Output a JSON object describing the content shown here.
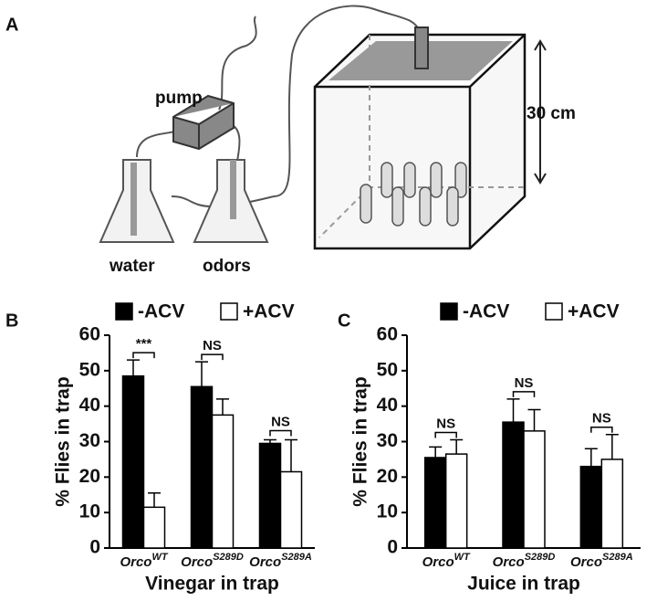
{
  "panel_a": {
    "label": "A",
    "pump": "pump",
    "water": "water",
    "odors": "odors",
    "height": "30 cm"
  },
  "chart_data": [
    {
      "type": "bar",
      "panel_label": "B",
      "y_label": "% Flies in trap",
      "x_label": "Vinegar in trap",
      "categories": [
        "OrcoWT",
        "OrcoS289D",
        "OrcoS289A"
      ],
      "series": [
        {
          "name": "-ACV",
          "color": "#000000",
          "values": [
            48.5,
            45.5,
            29.5
          ],
          "errors": [
            4.5,
            7,
            1
          ]
        },
        {
          "name": "+ACV",
          "color": "#ffffff",
          "values": [
            11.5,
            37.5,
            21.5
          ],
          "errors": [
            4,
            4.5,
            9
          ]
        }
      ],
      "annotations": [
        "***",
        "NS",
        "NS"
      ],
      "ylim": [
        0,
        60
      ],
      "yticks": [
        0,
        10,
        20,
        30,
        40,
        50,
        60
      ]
    },
    {
      "type": "bar",
      "panel_label": "C",
      "y_label": "% Flies in trap",
      "x_label": "Juice in trap",
      "categories": [
        "OrcoWT",
        "OrcoS289D",
        "OrcoS289A"
      ],
      "series": [
        {
          "name": "-ACV",
          "color": "#000000",
          "values": [
            25.5,
            35.5,
            23
          ],
          "errors": [
            3,
            6.5,
            5
          ]
        },
        {
          "name": "+ACV",
          "color": "#ffffff",
          "values": [
            26.5,
            33,
            25
          ],
          "errors": [
            4,
            6,
            7
          ]
        }
      ],
      "annotations": [
        "NS",
        "NS",
        "NS"
      ],
      "ylim": [
        0,
        60
      ],
      "yticks": [
        0,
        10,
        20,
        30,
        40,
        50,
        60
      ]
    }
  ]
}
